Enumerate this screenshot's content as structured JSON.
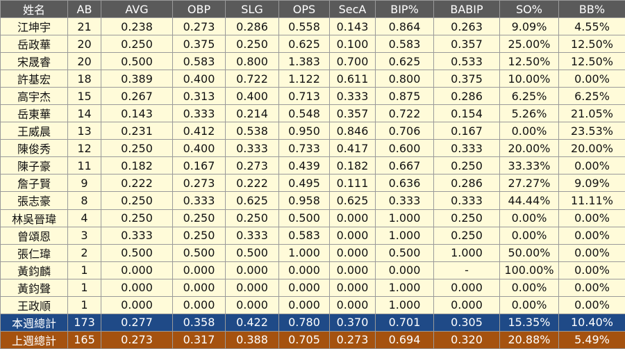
{
  "table": {
    "header": [
      "姓名",
      "AB",
      "AVG",
      "OBP",
      "SLG",
      "OPS",
      "SecA",
      "BIP%",
      "BABIP",
      "SO%",
      "BB%"
    ],
    "rows": [
      [
        "江坤宇",
        "21",
        "0.238",
        "0.273",
        "0.286",
        "0.558",
        "0.143",
        "0.864",
        "0.263",
        "9.09%",
        "4.55%"
      ],
      [
        "岳政華",
        "20",
        "0.250",
        "0.375",
        "0.250",
        "0.625",
        "0.100",
        "0.583",
        "0.357",
        "25.00%",
        "12.50%"
      ],
      [
        "宋晟睿",
        "20",
        "0.500",
        "0.583",
        "0.800",
        "1.383",
        "0.700",
        "0.625",
        "0.533",
        "12.50%",
        "12.50%"
      ],
      [
        "許基宏",
        "18",
        "0.389",
        "0.400",
        "0.722",
        "1.122",
        "0.611",
        "0.800",
        "0.375",
        "10.00%",
        "0.00%"
      ],
      [
        "高宇杰",
        "15",
        "0.267",
        "0.313",
        "0.400",
        "0.713",
        "0.333",
        "0.875",
        "0.286",
        "6.25%",
        "6.25%"
      ],
      [
        "岳東華",
        "14",
        "0.143",
        "0.333",
        "0.214",
        "0.548",
        "0.357",
        "0.722",
        "0.154",
        "5.26%",
        "21.05%"
      ],
      [
        "王威晨",
        "13",
        "0.231",
        "0.412",
        "0.538",
        "0.950",
        "0.846",
        "0.706",
        "0.167",
        "0.00%",
        "23.53%"
      ],
      [
        "陳俊秀",
        "12",
        "0.250",
        "0.400",
        "0.333",
        "0.733",
        "0.417",
        "0.600",
        "0.333",
        "20.00%",
        "20.00%"
      ],
      [
        "陳子豪",
        "11",
        "0.182",
        "0.167",
        "0.273",
        "0.439",
        "0.182",
        "0.667",
        "0.250",
        "33.33%",
        "0.00%"
      ],
      [
        "詹子賢",
        "9",
        "0.222",
        "0.273",
        "0.222",
        "0.495",
        "0.111",
        "0.636",
        "0.286",
        "27.27%",
        "9.09%"
      ],
      [
        "張志豪",
        "8",
        "0.250",
        "0.333",
        "0.625",
        "0.958",
        "0.625",
        "0.333",
        "0.333",
        "44.44%",
        "11.11%"
      ],
      [
        "林吳晉瑋",
        "4",
        "0.250",
        "0.250",
        "0.250",
        "0.500",
        "0.000",
        "1.000",
        "0.250",
        "0.00%",
        "0.00%"
      ],
      [
        "曾頌恩",
        "3",
        "0.333",
        "0.250",
        "0.333",
        "0.583",
        "0.000",
        "1.000",
        "0.250",
        "0.00%",
        "0.00%"
      ],
      [
        "張仁瑋",
        "2",
        "0.500",
        "0.500",
        "0.500",
        "1.000",
        "0.000",
        "0.500",
        "1.000",
        "50.00%",
        "0.00%"
      ],
      [
        "黃鈞麟",
        "1",
        "0.000",
        "0.000",
        "0.000",
        "0.000",
        "0.000",
        "0.000",
        "-",
        "100.00%",
        "0.00%"
      ],
      [
        "黃鈞聲",
        "1",
        "0.000",
        "0.000",
        "0.000",
        "0.000",
        "0.000",
        "1.000",
        "0.000",
        "0.00%",
        "0.00%"
      ],
      [
        "王政順",
        "1",
        "0.000",
        "0.000",
        "0.000",
        "0.000",
        "0.000",
        "1.000",
        "0.000",
        "0.00%",
        "0.00%"
      ]
    ],
    "summary_rows": [
      [
        "本週總計",
        "173",
        "0.277",
        "0.358",
        "0.422",
        "0.780",
        "0.370",
        "0.701",
        "0.305",
        "15.35%",
        "10.40%"
      ],
      [
        "上週總計",
        "165",
        "0.273",
        "0.317",
        "0.388",
        "0.705",
        "0.273",
        "0.694",
        "0.320",
        "20.88%",
        "5.49%"
      ]
    ]
  }
}
